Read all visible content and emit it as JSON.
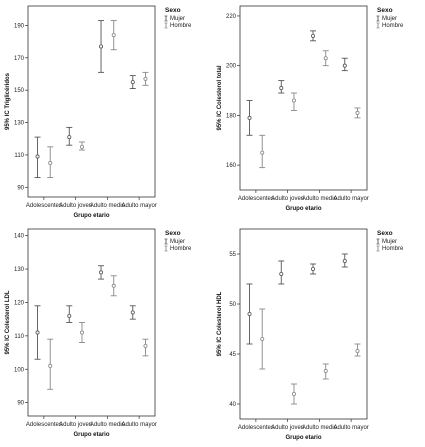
{
  "chart_data": [
    {
      "type": "scatter",
      "subtype": "error-bar",
      "xlabel": "Grupo etario",
      "ylabel": "95% IC Triglicéridos",
      "categories": [
        "Adolescentes",
        "Adulto joven",
        "Adulto medio",
        "Adulto mayor"
      ],
      "ylim": [
        84,
        202
      ],
      "yticks": [
        90,
        110,
        130,
        150,
        170,
        190
      ],
      "legend_title": "Sexo",
      "legend_position": "top-right",
      "grid": false,
      "series": [
        {
          "name": "Mujer",
          "mean": [
            109,
            121,
            177,
            155
          ],
          "low": [
            96,
            116,
            161,
            151
          ],
          "high": [
            121,
            127,
            193,
            159
          ]
        },
        {
          "name": "Hombre",
          "mean": [
            105,
            115,
            184,
            157
          ],
          "low": [
            96,
            113,
            175,
            153
          ],
          "high": [
            115,
            118,
            193,
            161
          ]
        }
      ]
    },
    {
      "type": "scatter",
      "subtype": "error-bar",
      "xlabel": "Grupo etario",
      "ylabel": "95% IC Colesterol total",
      "categories": [
        "Adolescentes",
        "Adulto joven",
        "Adulto medio",
        "Adulto mayor"
      ],
      "ylim": [
        150,
        224
      ],
      "yticks": [
        160,
        180,
        200,
        220
      ],
      "legend_title": "Sexo",
      "legend_position": "top-right",
      "grid": false,
      "series": [
        {
          "name": "Mujer",
          "mean": [
            179,
            191,
            212,
            200
          ],
          "low": [
            172,
            189,
            210,
            198
          ],
          "high": [
            186,
            194,
            214,
            203
          ]
        },
        {
          "name": "Hombre",
          "mean": [
            165,
            186,
            203,
            181
          ],
          "low": [
            159,
            182,
            200,
            179
          ],
          "high": [
            172,
            189,
            206,
            183
          ]
        }
      ]
    },
    {
      "type": "scatter",
      "subtype": "error-bar",
      "xlabel": "Grupo etario",
      "ylabel": "95% IC Colesterol LDL",
      "categories": [
        "Adolescentes",
        "Adulto joven",
        "Adulto medio",
        "Adulto mayor"
      ],
      "ylim": [
        86,
        142
      ],
      "yticks": [
        90,
        100,
        110,
        120,
        130,
        140
      ],
      "legend_title": "Sexo",
      "legend_position": "top-right",
      "grid": false,
      "series": [
        {
          "name": "Mujer",
          "mean": [
            111,
            116,
            129,
            117
          ],
          "low": [
            103,
            114,
            127,
            115
          ],
          "high": [
            119,
            119,
            131,
            119
          ]
        },
        {
          "name": "Hombre",
          "mean": [
            101,
            111,
            125,
            107
          ],
          "low": [
            94,
            108,
            122,
            104
          ],
          "high": [
            109,
            114,
            128,
            109
          ]
        }
      ]
    },
    {
      "type": "scatter",
      "subtype": "error-bar",
      "xlabel": "Grupo etario",
      "ylabel": "95% IC Colesterol HDL",
      "categories": [
        "Adolescentes",
        "Adulto joven",
        "Adulto medio",
        "Adulto mayor"
      ],
      "ylim": [
        38.5,
        57.5
      ],
      "yticks": [
        40,
        45,
        50,
        55
      ],
      "legend_title": "Sexo",
      "legend_position": "top-right",
      "grid": false,
      "series": [
        {
          "name": "Mujer",
          "mean": [
            49,
            53,
            53.5,
            54.3
          ],
          "low": [
            46,
            52,
            53,
            53.7
          ],
          "high": [
            52,
            54.3,
            54,
            55
          ]
        },
        {
          "name": "Hombre",
          "mean": [
            46.5,
            41,
            43.3,
            45.3
          ],
          "low": [
            43.5,
            40,
            42.5,
            44.8
          ],
          "high": [
            49.5,
            42,
            44,
            46
          ]
        }
      ]
    }
  ]
}
